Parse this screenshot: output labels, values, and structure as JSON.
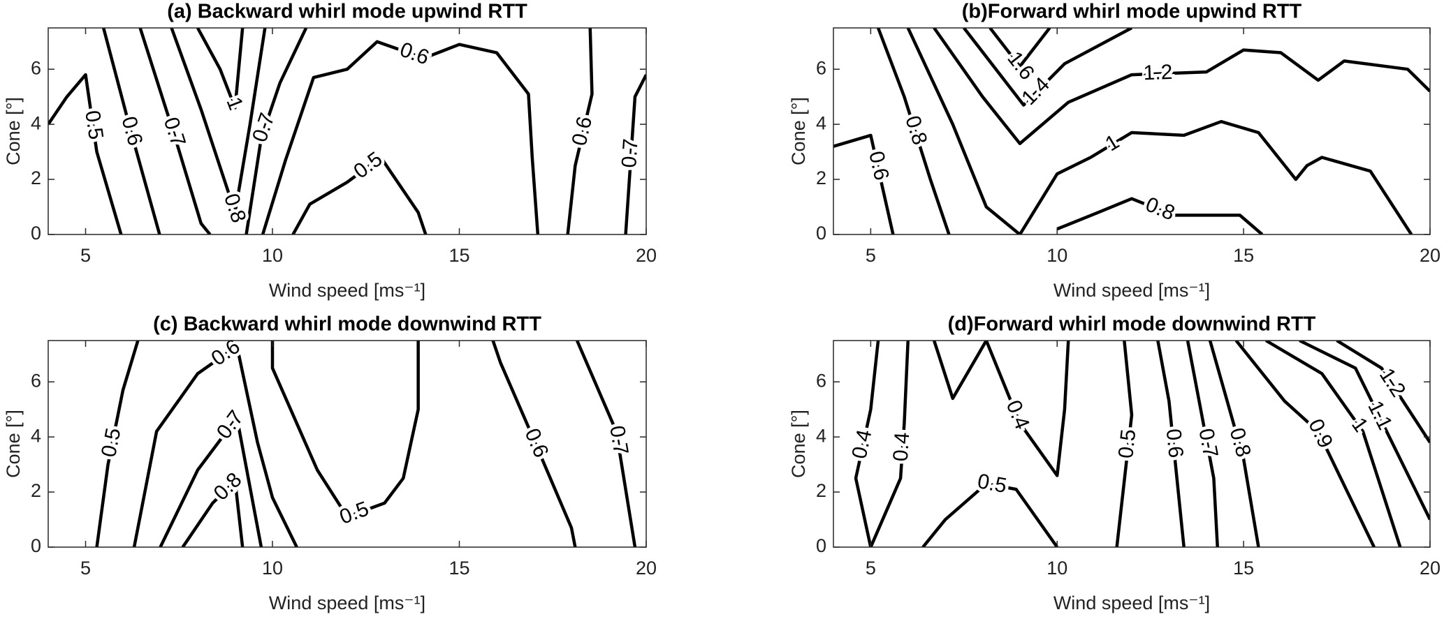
{
  "chart_data": [
    {
      "type": "contour",
      "title": "(a) Backward whirl mode upwind RTT",
      "xlabel": "Wind speed [ms⁻¹]",
      "ylabel": "Cone [°]",
      "xlim": [
        4,
        20
      ],
      "ylim": [
        0,
        7.5
      ],
      "xticks": [
        5,
        10,
        15,
        20
      ],
      "yticks": [
        0,
        2,
        4,
        6
      ],
      "color": "#000000",
      "contours": [
        {
          "level": 0.5,
          "x": [
            4,
            4.5,
            5,
            5.3,
            5.95
          ],
          "y": [
            4,
            5,
            5.8,
            3,
            0
          ]
        },
        {
          "level": 0.6,
          "x": [
            5.48,
            6.2,
            6.98
          ],
          "y": [
            7.5,
            3.8,
            0
          ]
        },
        {
          "level": 0.7,
          "x": [
            6.46,
            7.4,
            8.09,
            8.33
          ],
          "y": [
            7.5,
            3.5,
            0.4,
            0
          ]
        },
        {
          "level": 0.8,
          "x": [
            7.3,
            8.1,
            9.0,
            9.4,
            9.8
          ],
          "y": [
            7.5,
            4.5,
            0.8,
            4.0,
            7.5
          ]
        },
        {
          "level": 1,
          "x": [
            8.0,
            8.6,
            9.0,
            9.2
          ],
          "y": [
            7.5,
            6.0,
            4.6,
            7.5
          ]
        },
        {
          "level": 0.7,
          "x": [
            9.3,
            9.7,
            10.2,
            10.9
          ],
          "y": [
            0,
            3.5,
            5.5,
            7.5
          ]
        },
        {
          "level": 0.6,
          "x": [
            9.74,
            10.35,
            11.1,
            12.0,
            12.8,
            14.05,
            15.0,
            16.0,
            16.85,
            16.95,
            17.1
          ],
          "y": [
            0,
            2.7,
            5.7,
            6.0,
            7.0,
            6.4,
            6.9,
            6.6,
            5.1,
            2.8,
            0
          ]
        },
        {
          "level": 0.5,
          "x": [
            10.55,
            11.0,
            12.0,
            12.9,
            13.9,
            14.1
          ],
          "y": [
            0,
            1.1,
            1.9,
            2.8,
            0.8,
            0
          ]
        },
        {
          "level": 0.6,
          "x": [
            18.5,
            18.55,
            18.1,
            17.9
          ],
          "y": [
            7.5,
            5.1,
            2.5,
            0
          ]
        },
        {
          "level": 0.7,
          "x": [
            19.45,
            19.7,
            20
          ],
          "y": [
            0,
            5.0,
            5.8
          ]
        }
      ]
    },
    {
      "type": "contour",
      "title": "(b)Forward whirl mode upwind RTT",
      "xlabel": "Wind speed [ms⁻¹]",
      "ylabel": "Cone [°]",
      "xlim": [
        4,
        20
      ],
      "ylim": [
        0,
        7.5
      ],
      "xticks": [
        5,
        10,
        15,
        20
      ],
      "yticks": [
        0,
        2,
        4,
        6
      ],
      "color": "#000000",
      "contours": [
        {
          "level": 0.6,
          "x": [
            4,
            5,
            5.6
          ],
          "y": [
            3.2,
            3.6,
            0
          ]
        },
        {
          "level": 0.8,
          "x": [
            5.2,
            5.9,
            6.6,
            7.1
          ],
          "y": [
            7.5,
            5,
            2,
            0
          ]
        },
        {
          "level": 1,
          "x": [
            6.0,
            7.2,
            8.1,
            9.0,
            10.0,
            10.9,
            12.0,
            13.4,
            14.4,
            15.4,
            16.4,
            16.7,
            17.1,
            18.4,
            19.5
          ],
          "y": [
            7.5,
            4.0,
            1.0,
            0,
            2.2,
            2.8,
            3.7,
            3.6,
            4.1,
            3.7,
            2.0,
            2.5,
            2.8,
            2.3,
            0
          ]
        },
        {
          "level": 1.2,
          "x": [
            6.7,
            8.0,
            9.0,
            10.3,
            12.0,
            14.0,
            15.0,
            16.0,
            17.0,
            17.7,
            19.4,
            20
          ],
          "y": [
            7.5,
            5.0,
            3.3,
            4.8,
            5.8,
            5.9,
            6.7,
            6.6,
            5.6,
            6.3,
            6.0,
            5.2
          ]
        },
        {
          "level": 1.4,
          "x": [
            7.5,
            9.1,
            10.2,
            12.0
          ],
          "y": [
            7.5,
            4.7,
            6.2,
            7.5
          ]
        },
        {
          "level": 1.6,
          "x": [
            8.2,
            9.0,
            9.8
          ],
          "y": [
            7.5,
            6.1,
            7.5
          ]
        },
        {
          "level": 0.8,
          "x": [
            10,
            11.1,
            12.0,
            13.1,
            14.9,
            15.5
          ],
          "y": [
            0.2,
            0.8,
            1.3,
            0.7,
            0.7,
            0
          ]
        }
      ]
    },
    {
      "type": "contour",
      "title": "(c) Backward whirl mode downwind RTT",
      "xlabel": "Wind speed [ms⁻¹]",
      "ylabel": "Cone [°]",
      "xlim": [
        4,
        20
      ],
      "ylim": [
        0,
        7.5
      ],
      "xticks": [
        5,
        10,
        15,
        20
      ],
      "yticks": [
        0,
        2,
        4,
        6
      ],
      "color": "#000000",
      "contours": [
        {
          "level": 0.5,
          "x": [
            5.3,
            5.6,
            6.0,
            6.4
          ],
          "y": [
            0,
            3,
            5.7,
            7.5
          ]
        },
        {
          "level": 0.6,
          "x": [
            6.3,
            6.9,
            8.0,
            9.05,
            9.6,
            10.0,
            10.65
          ],
          "y": [
            0,
            4.2,
            6.3,
            7.3,
            3.8,
            1.8,
            0
          ]
        },
        {
          "level": 0.7,
          "x": [
            7.0,
            8.0,
            9.05,
            9.7
          ],
          "y": [
            0,
            2.8,
            4.7,
            0
          ]
        },
        {
          "level": 0.8,
          "x": [
            7.6,
            8.4,
            9.0,
            9.2
          ],
          "y": [
            0,
            1.6,
            2.4,
            0
          ]
        },
        {
          "level": 0.5,
          "x": [
            10.0,
            10.0,
            11.2,
            12.0,
            13.0,
            13.5,
            13.9,
            13.9
          ],
          "y": [
            7.5,
            6.5,
            2.8,
            1.1,
            1.6,
            2.5,
            5.0,
            7.5
          ]
        },
        {
          "level": 0.6,
          "x": [
            15.9,
            16.1,
            16.9,
            18.0,
            18.1
          ],
          "y": [
            7.5,
            6.7,
            4.2,
            0.7,
            0
          ]
        },
        {
          "level": 0.7,
          "x": [
            18.15,
            19.2,
            19.7
          ],
          "y": [
            7.5,
            4.2,
            0
          ]
        }
      ]
    },
    {
      "type": "contour",
      "title": "(d)Forward whirl mode downwind RTT",
      "xlabel": "Wind speed [ms⁻¹]",
      "ylabel": "Cone [°]",
      "xlim": [
        4,
        20
      ],
      "ylim": [
        0,
        7.5
      ],
      "xticks": [
        5,
        10,
        15,
        20
      ],
      "yticks": [
        0,
        2,
        4,
        6
      ],
      "color": "#000000",
      "contours": [
        {
          "level": 0.4,
          "x": [
            5.2,
            5.0,
            4.6,
            5.0
          ],
          "y": [
            7.5,
            5,
            2.5,
            0
          ]
        },
        {
          "level": 0.4,
          "x": [
            6.0,
            5.9,
            5.8,
            5.0
          ],
          "y": [
            7.5,
            4.5,
            2.5,
            0
          ]
        },
        {
          "level": 0.4,
          "x": [
            6.7,
            7.2,
            8.1,
            9.0,
            10.0,
            10.2,
            10.3
          ],
          "y": [
            7.5,
            5.4,
            7.5,
            4.5,
            2.6,
            5.0,
            7.5
          ]
        },
        {
          "level": 0.5,
          "x": [
            6.4,
            7.0,
            8.1,
            8.9,
            10.0
          ],
          "y": [
            0,
            1.0,
            2.3,
            2.1,
            0
          ]
        },
        {
          "level": 0.5,
          "x": [
            11.8,
            12.0,
            11.6
          ],
          "y": [
            7.5,
            4.8,
            0
          ]
        },
        {
          "level": 0.6,
          "x": [
            12.7,
            13.0,
            13.4
          ],
          "y": [
            7.5,
            5.3,
            0
          ]
        },
        {
          "level": 0.7,
          "x": [
            13.5,
            14.2,
            14.3
          ],
          "y": [
            7.5,
            2.5,
            0
          ]
        },
        {
          "level": 0.8,
          "x": [
            14.1,
            15.0,
            15.4
          ],
          "y": [
            7.5,
            3.2,
            0
          ]
        },
        {
          "level": 0.9,
          "x": [
            14.8,
            16.1,
            17.0,
            18.5
          ],
          "y": [
            7.5,
            5.3,
            4.2,
            0
          ]
        },
        {
          "level": 1,
          "x": [
            15.6,
            17.1,
            18.2,
            19.2
          ],
          "y": [
            7.5,
            6.3,
            4.2,
            0
          ]
        },
        {
          "level": 1.1,
          "x": [
            16.5,
            18.0,
            20
          ],
          "y": [
            7.5,
            6.5,
            1.0
          ]
        },
        {
          "level": 1.2,
          "x": [
            17.5,
            18.7,
            20
          ],
          "y": [
            7.5,
            6.5,
            3.8
          ]
        }
      ]
    }
  ]
}
